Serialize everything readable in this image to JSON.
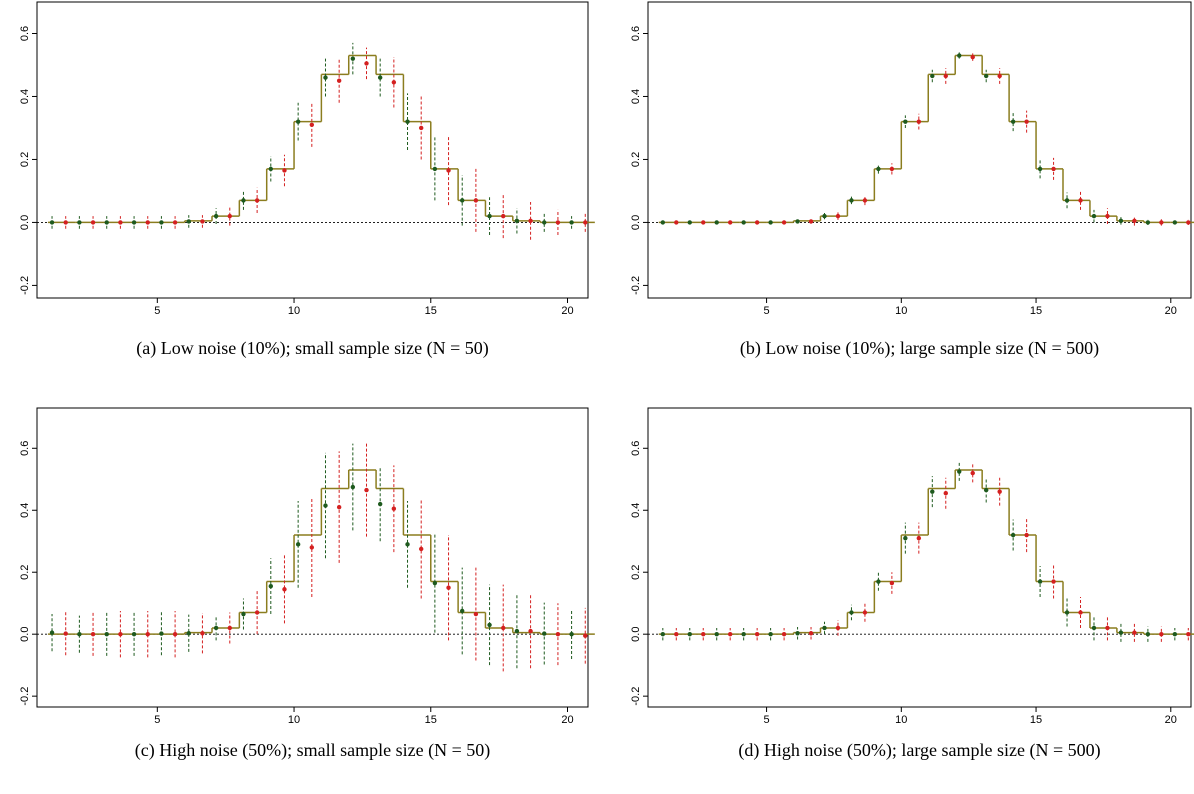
{
  "chart_data": [
    {
      "type": "errorbar",
      "title": "(a) Low noise (10%); small sample size (N = 50)",
      "xlim": [
        0.6,
        20.75
      ],
      "ylim": [
        -0.24,
        0.7
      ],
      "xticks": [
        5,
        10,
        15,
        20
      ],
      "yticks": [
        -0.2,
        {
          "value": 0,
          "label": "0.0"
        },
        0.2,
        0.4,
        0.6
      ],
      "hline": 0,
      "step": {
        "color": "#8b7d1f",
        "bins": [
          1,
          2,
          3,
          4,
          5,
          6,
          7,
          8,
          9,
          10,
          11,
          12,
          13,
          14,
          15,
          16,
          17,
          18,
          19,
          20,
          21
        ],
        "values": [
          0,
          0,
          0,
          0,
          0,
          0.005,
          0.02,
          0.07,
          0.17,
          0.32,
          0.47,
          0.53,
          0.47,
          0.32,
          0.17,
          0.07,
          0.02,
          0.005,
          0,
          0
        ]
      },
      "series": [
        {
          "color": "#1e5a1e",
          "x": [
            1.15,
            2.15,
            3.15,
            4.15,
            5.15,
            6.15,
            7.15,
            8.15,
            9.15,
            10.15,
            11.15,
            12.15,
            13.15,
            14.15,
            15.15,
            16.15,
            17.15,
            18.15,
            19.15,
            20.15
          ],
          "values": [
            0,
            0,
            0,
            0,
            0,
            0.003,
            0.02,
            0.07,
            0.17,
            0.32,
            0.46,
            0.52,
            0.46,
            0.32,
            0.17,
            0.07,
            0.02,
            0.005,
            0,
            0
          ],
          "errors": [
            0.02,
            0.02,
            0.02,
            0.02,
            0.02,
            0.02,
            0.025,
            0.03,
            0.04,
            0.06,
            0.06,
            0.05,
            0.06,
            0.09,
            0.1,
            0.08,
            0.06,
            0.04,
            0.03,
            0.02
          ]
        },
        {
          "color": "#d42020",
          "x": [
            1.65,
            2.65,
            3.65,
            4.65,
            5.65,
            6.65,
            7.65,
            8.65,
            9.65,
            10.65,
            11.65,
            12.65,
            13.65,
            14.65,
            15.65,
            16.65,
            17.65,
            18.65,
            19.65,
            20.65
          ],
          "values": [
            0,
            0,
            0,
            0,
            0,
            0.003,
            0.02,
            0.07,
            0.165,
            0.31,
            0.45,
            0.505,
            0.445,
            0.3,
            0.165,
            0.07,
            0.02,
            0.005,
            0,
            0
          ],
          "errors": [
            0.02,
            0.02,
            0.02,
            0.02,
            0.02,
            0.02,
            0.03,
            0.04,
            0.05,
            0.07,
            0.07,
            0.05,
            0.08,
            0.1,
            0.11,
            0.1,
            0.07,
            0.06,
            0.04,
            0.03
          ]
        }
      ]
    },
    {
      "type": "errorbar",
      "title": "(b) Low noise (10%); large sample size (N = 500)",
      "xlim": [
        0.6,
        20.75
      ],
      "ylim": [
        -0.24,
        0.7
      ],
      "xticks": [
        5,
        10,
        15,
        20
      ],
      "yticks": [
        -0.2,
        {
          "value": 0,
          "label": "0.0"
        },
        0.2,
        0.4,
        0.6
      ],
      "hline": 0,
      "step": {
        "color": "#8b7d1f",
        "bins": [
          1,
          2,
          3,
          4,
          5,
          6,
          7,
          8,
          9,
          10,
          11,
          12,
          13,
          14,
          15,
          16,
          17,
          18,
          19,
          20,
          21
        ],
        "values": [
          0,
          0,
          0,
          0,
          0,
          0.005,
          0.02,
          0.07,
          0.17,
          0.32,
          0.47,
          0.53,
          0.47,
          0.32,
          0.17,
          0.07,
          0.02,
          0.005,
          0,
          0
        ]
      },
      "series": [
        {
          "color": "#1e5a1e",
          "x": [
            1.15,
            2.15,
            3.15,
            4.15,
            5.15,
            6.15,
            7.15,
            8.15,
            9.15,
            10.15,
            11.15,
            12.15,
            13.15,
            14.15,
            15.15,
            16.15,
            17.15,
            18.15,
            19.15,
            20.15
          ],
          "values": [
            0,
            0,
            0,
            0,
            0,
            0.003,
            0.02,
            0.07,
            0.17,
            0.32,
            0.465,
            0.53,
            0.465,
            0.32,
            0.17,
            0.07,
            0.02,
            0.005,
            0,
            0
          ],
          "errors": [
            0.005,
            0.005,
            0.005,
            0.005,
            0.005,
            0.006,
            0.01,
            0.012,
            0.015,
            0.02,
            0.02,
            0.01,
            0.02,
            0.03,
            0.03,
            0.025,
            0.02,
            0.012,
            0.008,
            0.006
          ]
        },
        {
          "color": "#d42020",
          "x": [
            1.65,
            2.65,
            3.65,
            4.65,
            5.65,
            6.65,
            7.65,
            8.65,
            9.65,
            10.65,
            11.65,
            12.65,
            13.65,
            14.65,
            15.65,
            16.65,
            17.65,
            18.65,
            19.65,
            20.65
          ],
          "values": [
            0,
            0,
            0,
            0,
            0,
            0.003,
            0.02,
            0.07,
            0.17,
            0.32,
            0.465,
            0.525,
            0.465,
            0.32,
            0.17,
            0.07,
            0.02,
            0.005,
            0,
            0
          ],
          "errors": [
            0.006,
            0.006,
            0.006,
            0.006,
            0.006,
            0.007,
            0.012,
            0.015,
            0.018,
            0.025,
            0.025,
            0.012,
            0.025,
            0.035,
            0.035,
            0.03,
            0.025,
            0.015,
            0.01,
            0.008
          ]
        }
      ]
    },
    {
      "type": "errorbar",
      "title": "(c) High noise (50%); small sample size (N = 50)",
      "xlim": [
        0.6,
        20.75
      ],
      "ylim": [
        -0.235,
        0.73
      ],
      "xticks": [
        5,
        10,
        15,
        20
      ],
      "yticks": [
        -0.2,
        {
          "value": 0,
          "label": "0.0"
        },
        0.2,
        0.4,
        0.6
      ],
      "hline": 0,
      "step": {
        "color": "#8b7d1f",
        "bins": [
          1,
          2,
          3,
          4,
          5,
          6,
          7,
          8,
          9,
          10,
          11,
          12,
          13,
          14,
          15,
          16,
          17,
          18,
          19,
          20,
          21
        ],
        "values": [
          0,
          0,
          0,
          0,
          0,
          0.005,
          0.02,
          0.07,
          0.17,
          0.32,
          0.47,
          0.53,
          0.47,
          0.32,
          0.17,
          0.07,
          0.02,
          0.005,
          0,
          0
        ]
      },
      "series": [
        {
          "color": "#1e5a1e",
          "x": [
            1.15,
            2.15,
            3.15,
            4.15,
            5.15,
            6.15,
            7.15,
            8.15,
            9.15,
            10.15,
            11.15,
            12.15,
            13.15,
            14.15,
            15.15,
            16.15,
            17.15,
            18.15,
            19.15,
            20.15
          ],
          "values": [
            0.005,
            0,
            0,
            0,
            0.002,
            0.003,
            0.02,
            0.065,
            0.155,
            0.29,
            0.415,
            0.475,
            0.42,
            0.29,
            0.165,
            0.075,
            0.03,
            0.01,
            0.002,
            0
          ],
          "errors": [
            0.06,
            0.06,
            0.07,
            0.07,
            0.07,
            0.06,
            0.04,
            0.05,
            0.09,
            0.14,
            0.17,
            0.14,
            0.12,
            0.14,
            0.16,
            0.14,
            0.13,
            0.12,
            0.1,
            0.08
          ]
        },
        {
          "color": "#d42020",
          "x": [
            1.65,
            2.65,
            3.65,
            4.65,
            5.65,
            6.65,
            7.65,
            8.65,
            9.65,
            10.65,
            11.65,
            12.65,
            13.65,
            14.65,
            15.65,
            16.65,
            17.65,
            18.65,
            19.65,
            20.65
          ],
          "values": [
            0.002,
            0,
            0,
            0,
            0,
            0.003,
            0.02,
            0.07,
            0.145,
            0.28,
            0.41,
            0.465,
            0.405,
            0.275,
            0.15,
            0.065,
            0.02,
            0.01,
            0,
            -0.005
          ],
          "errors": [
            0.07,
            0.07,
            0.075,
            0.075,
            0.075,
            0.065,
            0.05,
            0.07,
            0.11,
            0.16,
            0.18,
            0.15,
            0.14,
            0.16,
            0.17,
            0.15,
            0.14,
            0.12,
            0.1,
            0.09
          ]
        }
      ]
    },
    {
      "type": "errorbar",
      "title": "(d) High noise (50%); large sample size (N = 500)",
      "xlim": [
        0.6,
        20.75
      ],
      "ylim": [
        -0.235,
        0.73
      ],
      "xticks": [
        5,
        10,
        15,
        20
      ],
      "yticks": [
        -0.2,
        {
          "value": 0,
          "label": "0.0"
        },
        0.2,
        0.4,
        0.6
      ],
      "hline": 0,
      "step": {
        "color": "#8b7d1f",
        "bins": [
          1,
          2,
          3,
          4,
          5,
          6,
          7,
          8,
          9,
          10,
          11,
          12,
          13,
          14,
          15,
          16,
          17,
          18,
          19,
          20,
          21
        ],
        "values": [
          0,
          0,
          0,
          0,
          0,
          0.005,
          0.02,
          0.07,
          0.17,
          0.32,
          0.47,
          0.53,
          0.47,
          0.32,
          0.17,
          0.07,
          0.02,
          0.005,
          0,
          0
        ]
      },
      "series": [
        {
          "color": "#1e5a1e",
          "x": [
            1.15,
            2.15,
            3.15,
            4.15,
            5.15,
            6.15,
            7.15,
            8.15,
            9.15,
            10.15,
            11.15,
            12.15,
            13.15,
            14.15,
            15.15,
            16.15,
            17.15,
            18.15,
            19.15,
            20.15
          ],
          "values": [
            0,
            0,
            0,
            0,
            0,
            0.003,
            0.02,
            0.07,
            0.17,
            0.31,
            0.46,
            0.525,
            0.465,
            0.32,
            0.17,
            0.07,
            0.02,
            0.005,
            0,
            0
          ],
          "errors": [
            0.02,
            0.02,
            0.02,
            0.02,
            0.02,
            0.02,
            0.02,
            0.025,
            0.03,
            0.05,
            0.05,
            0.03,
            0.04,
            0.05,
            0.05,
            0.045,
            0.04,
            0.03,
            0.025,
            0.02
          ]
        },
        {
          "color": "#d42020",
          "x": [
            1.65,
            2.65,
            3.65,
            4.65,
            5.65,
            6.65,
            7.65,
            8.65,
            9.65,
            10.65,
            11.65,
            12.65,
            13.65,
            14.65,
            15.65,
            16.65,
            17.65,
            18.65,
            19.65,
            20.65
          ],
          "values": [
            0,
            0,
            0,
            0,
            0,
            0.003,
            0.02,
            0.07,
            0.165,
            0.31,
            0.455,
            0.52,
            0.46,
            0.32,
            0.17,
            0.07,
            0.02,
            0.005,
            0,
            0
          ],
          "errors": [
            0.02,
            0.02,
            0.02,
            0.02,
            0.02,
            0.02,
            0.025,
            0.03,
            0.035,
            0.05,
            0.05,
            0.03,
            0.045,
            0.055,
            0.055,
            0.05,
            0.04,
            0.03,
            0.025,
            0.02
          ]
        }
      ]
    }
  ]
}
